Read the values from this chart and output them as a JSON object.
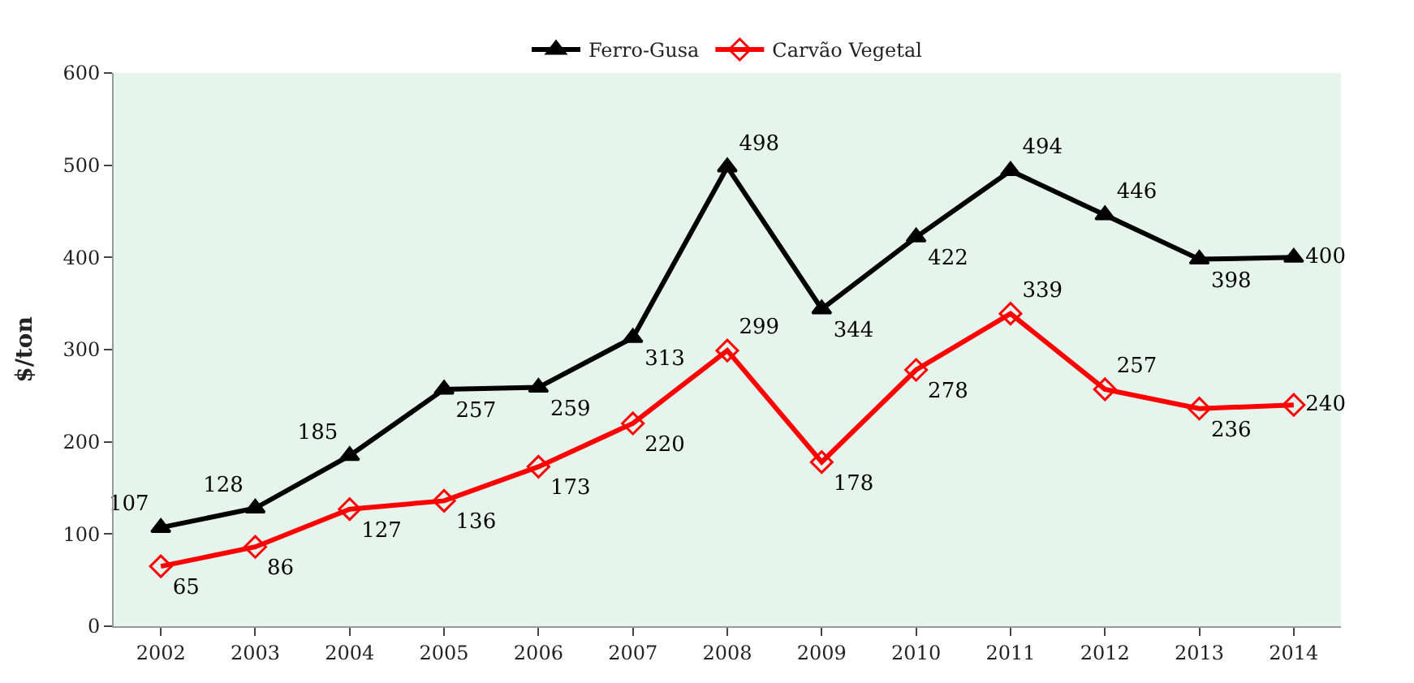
{
  "chart_data": {
    "type": "line",
    "ylabel": "$/ton",
    "categories": [
      "2002",
      "2003",
      "2004",
      "2005",
      "2006",
      "2007",
      "2008",
      "2009",
      "2010",
      "2011",
      "2012",
      "2013",
      "2014"
    ],
    "series": [
      {
        "name": "Ferro-Gusa",
        "color": "#000000",
        "marker": "triangle",
        "values": [
          107,
          128,
          185,
          257,
          259,
          313,
          498,
          344,
          422,
          494,
          446,
          398,
          400
        ]
      },
      {
        "name": "Carvão Vegetal",
        "color": "#ff0000",
        "marker": "diamond",
        "values": [
          65,
          86,
          127,
          136,
          173,
          220,
          299,
          178,
          278,
          339,
          257,
          236,
          240
        ]
      }
    ],
    "ylim": [
      0,
      600
    ],
    "yticks": [
      0,
      100,
      200,
      300,
      400,
      500,
      600
    ],
    "grid": false,
    "legend": "top",
    "data_labels": true
  }
}
